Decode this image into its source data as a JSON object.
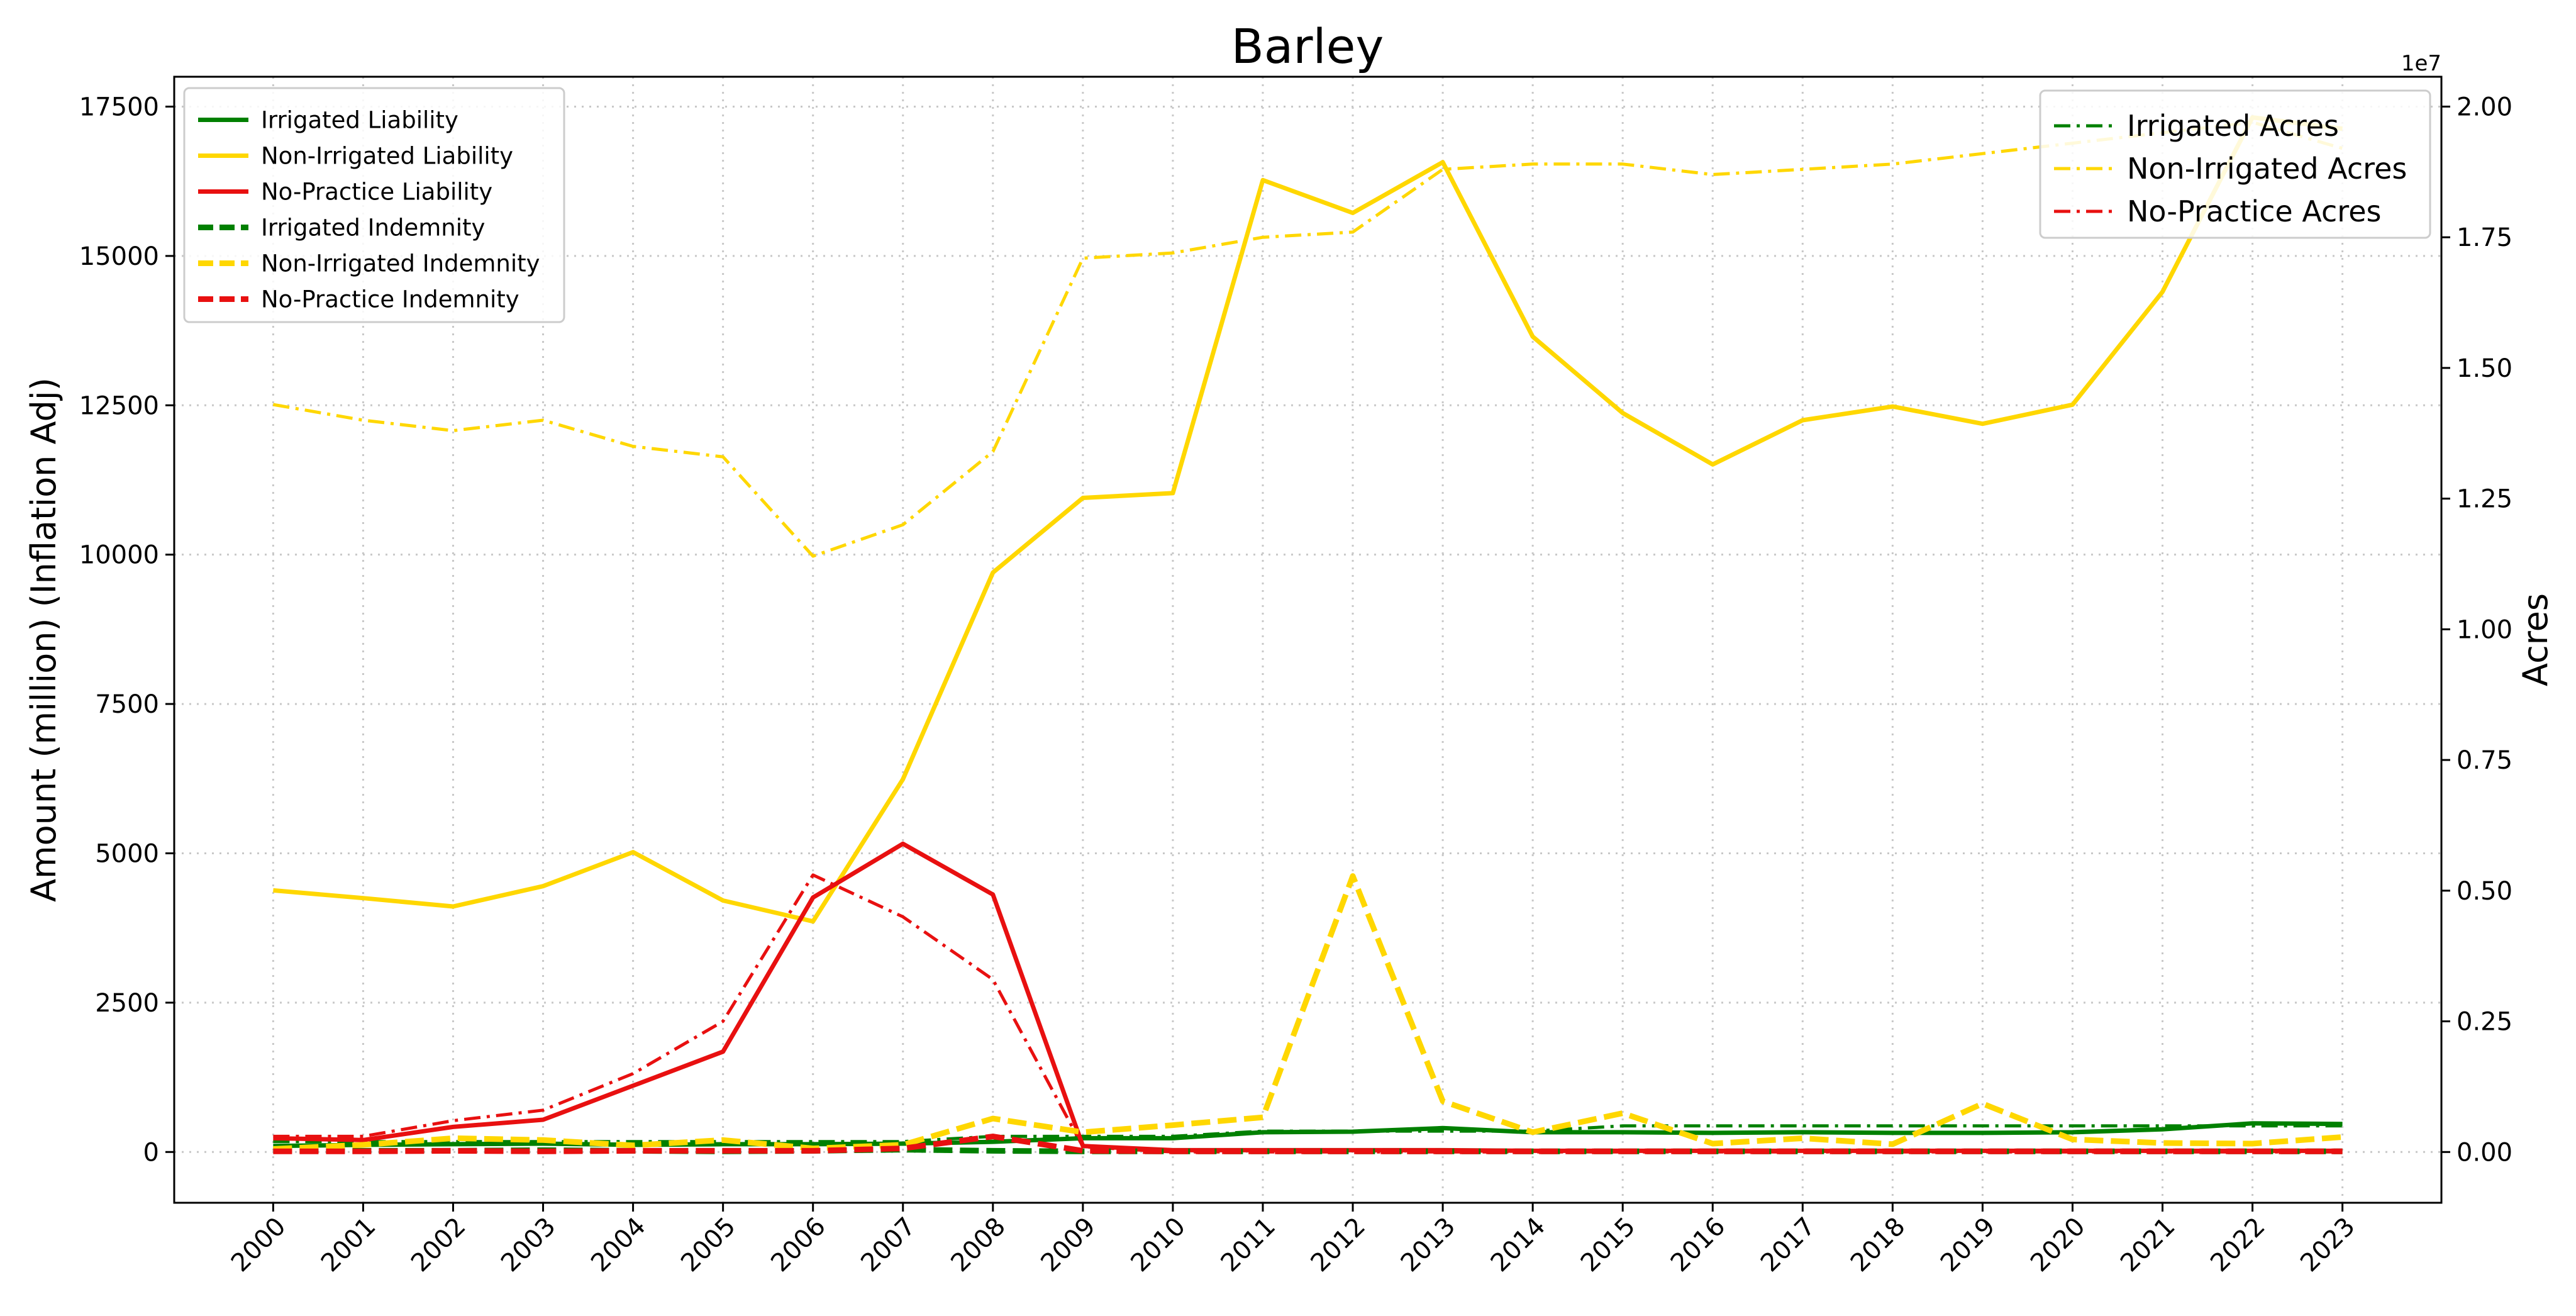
{
  "chart_data": {
    "type": "line",
    "title": "Barley",
    "xlabel": "",
    "ylabel": "Amount (million) (Inflation Adj)",
    "ylabel_right": "Acres",
    "right_axis_multiplier": "1e7",
    "grid": true,
    "x": [
      2000,
      2001,
      2002,
      2003,
      2004,
      2005,
      2006,
      2007,
      2008,
      2009,
      2010,
      2011,
      2012,
      2013,
      2014,
      2015,
      2016,
      2017,
      2018,
      2019,
      2020,
      2021,
      2022,
      2023
    ],
    "x_tick_labels": [
      "2000",
      "2001",
      "2002",
      "2003",
      "2004",
      "2005",
      "2006",
      "2007",
      "2008",
      "2009",
      "2010",
      "2011",
      "2012",
      "2013",
      "2014",
      "2015",
      "2016",
      "2017",
      "2018",
      "2019",
      "2020",
      "2021",
      "2022",
      "2023"
    ],
    "y_left_lim": [
      -850,
      18000
    ],
    "y_left_ticks": [
      0,
      2500,
      5000,
      7500,
      10000,
      12500,
      15000,
      17500
    ],
    "y_left_tick_labels": [
      "0",
      "2500",
      "5000",
      "7500",
      "10000",
      "12500",
      "15000",
      "17500"
    ],
    "y_right_lim": [
      -0.0971,
      2.0571
    ],
    "y_right_ticks": [
      0,
      0.25,
      0.5,
      0.75,
      1.0,
      1.25,
      1.5,
      1.75,
      2.0
    ],
    "y_right_tick_labels": [
      "0.00",
      "0.25",
      "0.50",
      "0.75",
      "1.00",
      "1.25",
      "1.50",
      "1.75",
      "2.00"
    ],
    "legend_left_placement": "top-left",
    "legend_right_placement": "top-right",
    "series": [
      {
        "name": "Irrigated Liability",
        "axis": "left",
        "style": "solid",
        "color": "#008000",
        "values": [
          100,
          120,
          130,
          140,
          120,
          130,
          130,
          140,
          170,
          230,
          230,
          330,
          340,
          400,
          330,
          330,
          320,
          330,
          320,
          320,
          330,
          380,
          480,
          470
        ]
      },
      {
        "name": "Non-Irrigated Liability",
        "axis": "left",
        "style": "solid",
        "color": "#FFD700",
        "values": [
          4380,
          4250,
          4110,
          4450,
          5020,
          4210,
          3860,
          6240,
          9700,
          10950,
          11030,
          16270,
          15720,
          16570,
          13650,
          12370,
          11510,
          12250,
          12480,
          12190,
          12510,
          14400,
          17320,
          17130
        ]
      },
      {
        "name": "No-Practice Liability",
        "axis": "left",
        "style": "solid",
        "color": "#E81010",
        "values": [
          230,
          200,
          420,
          540,
          1110,
          1680,
          4260,
          5160,
          4310,
          100,
          30,
          30,
          30,
          30,
          20,
          20,
          20,
          20,
          20,
          20,
          20,
          20,
          20,
          20
        ]
      },
      {
        "name": "Irrigated Indemnity",
        "axis": "left",
        "style": "dashed",
        "color": "#008000",
        "values": [
          30,
          20,
          20,
          30,
          20,
          10,
          20,
          40,
          20,
          10,
          10,
          10,
          10,
          10,
          10,
          10,
          10,
          10,
          10,
          10,
          10,
          10,
          10,
          10
        ]
      },
      {
        "name": "Non-Irrigated Indemnity",
        "axis": "left",
        "style": "dashed",
        "color": "#FFD700",
        "values": [
          50,
          120,
          230,
          200,
          110,
          200,
          60,
          120,
          560,
          330,
          450,
          580,
          4620,
          850,
          330,
          650,
          140,
          230,
          130,
          810,
          210,
          150,
          140,
          250
        ]
      },
      {
        "name": "No-Practice Indemnity",
        "axis": "left",
        "style": "dashed",
        "color": "#E81010",
        "values": [
          10,
          10,
          20,
          10,
          20,
          20,
          20,
          60,
          260,
          20,
          10,
          10,
          10,
          10,
          10,
          10,
          10,
          10,
          10,
          10,
          10,
          10,
          10,
          10
        ]
      },
      {
        "name": "Irrigated Acres",
        "axis": "right",
        "style": "dashdot",
        "color": "#008000",
        "values": [
          0.02,
          0.02,
          0.02,
          0.02,
          0.02,
          0.02,
          0.02,
          0.02,
          0.03,
          0.03,
          0.03,
          0.04,
          0.04,
          0.04,
          0.04,
          0.05,
          0.05,
          0.05,
          0.05,
          0.05,
          0.05,
          0.05,
          0.05,
          0.05
        ]
      },
      {
        "name": "Non-Irrigated Acres",
        "axis": "right",
        "style": "dashdot",
        "color": "#FFD700",
        "values": [
          1.43,
          1.4,
          1.38,
          1.4,
          1.35,
          1.33,
          1.14,
          1.2,
          1.34,
          1.71,
          1.72,
          1.75,
          1.76,
          1.88,
          1.89,
          1.89,
          1.87,
          1.88,
          1.89,
          1.91,
          1.93,
          1.95,
          1.97,
          1.92
        ]
      },
      {
        "name": "No-Practice Acres",
        "axis": "right",
        "style": "dashdot",
        "color": "#E81010",
        "values": [
          0.03,
          0.03,
          0.06,
          0.08,
          0.15,
          0.25,
          0.53,
          0.45,
          0.33,
          0.01,
          0.0,
          0.0,
          0.0,
          0.0,
          0.0,
          0.0,
          0.0,
          0.0,
          0.0,
          0.0,
          0.0,
          0.0,
          0.0,
          0.0
        ]
      }
    ]
  }
}
